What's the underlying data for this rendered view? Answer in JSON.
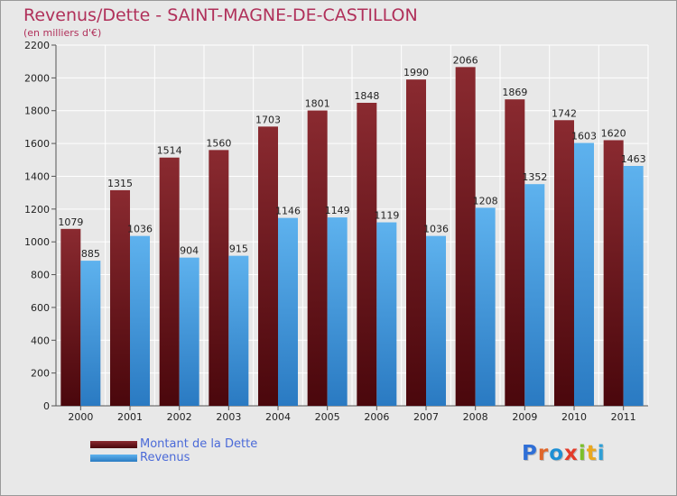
{
  "header": {
    "title": "Revenus/Dette - SAINT-MAGNE-DE-CASTILLON",
    "subtitle": "(en milliers d'€)"
  },
  "logo": {
    "text": "Proxiti",
    "letter_colors": [
      "#2f6fd6",
      "#e0662a",
      "#1d8fd4",
      "#e33b2a",
      "#7bbf2a",
      "#e9a81f",
      "#2f9fd6"
    ]
  },
  "legend": {
    "items": [
      {
        "label": "Montant de la Dette",
        "color": "#6b1118"
      },
      {
        "label": "Revenus",
        "color": "#4a9fe0"
      }
    ]
  },
  "chart_data": {
    "type": "bar",
    "title": "Revenus/Dette - SAINT-MAGNE-DE-CASTILLON",
    "subtitle": "(en milliers d'€)",
    "categories": [
      "2000",
      "2001",
      "2002",
      "2003",
      "2004",
      "2005",
      "2006",
      "2007",
      "2008",
      "2009",
      "2010",
      "2011"
    ],
    "series": [
      {
        "name": "Montant de la Dette",
        "color": "#7a1c22",
        "values": [
          1079,
          1315,
          1514,
          1560,
          1703,
          1801,
          1848,
          1990,
          2066,
          1869,
          1742,
          1620
        ]
      },
      {
        "name": "Revenus",
        "color": "#4aa3e6",
        "values": [
          885,
          1036,
          904,
          915,
          1146,
          1149,
          1119,
          1036,
          1208,
          1352,
          1603,
          1463
        ]
      }
    ],
    "ylim": [
      0,
      2200
    ],
    "yticks": [
      0,
      200,
      400,
      600,
      800,
      1000,
      1200,
      1400,
      1600,
      1800,
      2000,
      2200
    ],
    "grid": true,
    "legend_position": "bottom-left",
    "data_labels": true
  }
}
